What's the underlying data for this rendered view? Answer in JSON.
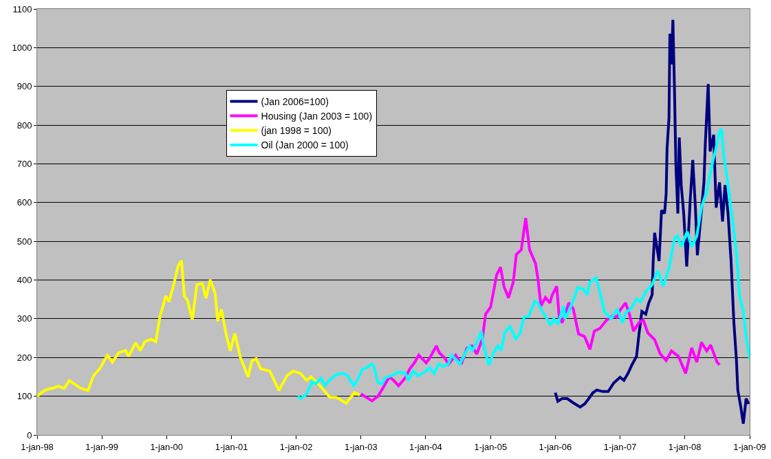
{
  "chart_data": {
    "type": "line",
    "xlim": [
      "1998-01-01",
      "2009-01-01"
    ],
    "xticks": [
      {
        "value": "1998-01-01",
        "label": "1-jan-98"
      },
      {
        "value": "1999-01-01",
        "label": "1-jan-99"
      },
      {
        "value": "2000-01-01",
        "label": "1-jan-00"
      },
      {
        "value": "2001-01-01",
        "label": "1-jan-01"
      },
      {
        "value": "2002-01-01",
        "label": "1-jan-02"
      },
      {
        "value": "2003-01-01",
        "label": "1-jan-03"
      },
      {
        "value": "2004-01-01",
        "label": "1-jan-04"
      },
      {
        "value": "2005-01-01",
        "label": "1-jan-05"
      },
      {
        "value": "2006-01-01",
        "label": "1-jan-06"
      },
      {
        "value": "2007-01-01",
        "label": "1-jan-07"
      },
      {
        "value": "2008-01-01",
        "label": "1-jan-08"
      },
      {
        "value": "2009-01-01",
        "label": "1-jan-09"
      }
    ],
    "ylim": [
      0,
      1100
    ],
    "yticks": [
      0,
      100,
      200,
      300,
      400,
      500,
      600,
      700,
      800,
      900,
      1000,
      1100
    ],
    "grid": "y",
    "legend": "top left",
    "marker": "none",
    "line_style": "solid",
    "series": [
      {
        "name": "(Jan 2006=100)",
        "color": "#000080",
        "x": [
          "2006-01-01",
          "2006-01-15",
          "2006-02-09",
          "2006-03-09",
          "2006-04-12",
          "2006-05-21",
          "2006-06-15",
          "2006-07-09",
          "2006-08-01",
          "2006-08-23",
          "2006-09-26",
          "2006-10-26",
          "2006-11-26",
          "2007-01-01",
          "2007-01-23",
          "2007-02-15",
          "2007-03-09",
          "2007-04-04",
          "2007-04-18",
          "2007-05-04",
          "2007-05-26",
          "2007-06-12",
          "2007-07-01",
          "2007-07-07",
          "2007-07-15",
          "2007-08-09",
          "2007-08-23",
          "2007-09-09",
          "2007-09-18",
          "2007-09-23",
          "2007-10-04",
          "2007-10-09",
          "2007-10-18",
          "2007-10-26",
          "2007-11-04",
          "2007-11-12",
          "2007-11-23",
          "2007-12-01",
          "2007-12-12",
          "2007-12-26",
          "2008-01-12",
          "2008-02-01",
          "2008-02-15",
          "2008-03-01",
          "2008-03-12",
          "2008-04-04",
          "2008-04-18",
          "2008-04-26",
          "2008-05-12",
          "2008-05-23",
          "2008-06-12",
          "2008-06-26",
          "2008-07-15",
          "2008-08-01",
          "2008-08-15",
          "2008-09-01",
          "2008-09-18",
          "2008-10-04",
          "2008-10-18",
          "2008-10-26",
          "2008-11-12",
          "2008-11-26",
          "2008-12-12",
          "2008-12-26"
        ],
        "values": [
          109,
          87,
          94,
          94,
          83,
          72,
          80,
          94,
          109,
          116,
          112,
          112,
          134,
          149,
          141,
          159,
          181,
          203,
          261,
          319,
          312,
          341,
          362,
          449,
          522,
          449,
          580,
          572,
          623,
          739,
          819,
          1036,
          957,
          1072,
          891,
          696,
          572,
          768,
          645,
          572,
          435,
          609,
          710,
          587,
          464,
          580,
          652,
          754,
          906,
          732,
          775,
          587,
          652,
          551,
          645,
          572,
          449,
          290,
          196,
          116,
          72,
          29,
          94,
          80
        ]
      },
      {
        "name": "Housing (Jan 2003 = 100)",
        "color": "#ff00ff",
        "x": [
          "2003-01-01",
          "2003-02-01",
          "2003-03-04",
          "2003-04-07",
          "2003-05-01",
          "2003-06-10",
          "2003-07-04",
          "2003-08-01",
          "2003-09-07",
          "2003-10-04",
          "2003-11-01",
          "2003-11-23",
          "2004-01-04",
          "2004-01-26",
          "2004-03-01",
          "2004-03-18",
          "2004-04-15",
          "2004-05-09",
          "2004-06-18",
          "2004-07-20",
          "2004-08-20",
          "2004-09-18",
          "2004-10-15",
          "2004-11-15",
          "2004-12-04",
          "2005-01-01",
          "2005-02-04",
          "2005-02-26",
          "2005-03-18",
          "2005-04-12",
          "2005-05-09",
          "2005-05-26",
          "2005-06-23",
          "2005-07-18",
          "2005-08-09",
          "2005-09-12",
          "2005-09-26",
          "2005-10-12",
          "2005-11-06",
          "2005-12-01",
          "2005-12-15",
          "2006-01-09",
          "2006-01-23",
          "2006-02-09",
          "2006-03-18",
          "2006-04-12",
          "2006-05-12",
          "2006-06-15",
          "2006-07-15",
          "2006-08-09",
          "2006-09-09",
          "2006-10-18",
          "2006-11-20",
          "2006-12-15",
          "2007-01-01",
          "2007-02-01",
          "2007-02-23",
          "2007-03-18",
          "2007-04-18",
          "2007-05-12",
          "2007-06-06",
          "2007-07-15",
          "2007-08-15",
          "2007-09-18",
          "2007-10-18",
          "2007-11-26",
          "2008-01-06",
          "2008-02-09",
          "2008-03-09",
          "2008-04-04",
          "2008-05-04",
          "2008-05-26",
          "2008-07-01",
          "2008-07-15"
        ],
        "values": [
          106,
          97,
          88,
          100,
          118,
          150,
          141,
          127,
          147,
          171,
          188,
          206,
          186,
          200,
          230,
          212,
          200,
          183,
          206,
          183,
          224,
          230,
          209,
          247,
          312,
          330,
          413,
          433,
          383,
          354,
          395,
          466,
          478,
          560,
          478,
          442,
          399,
          333,
          355,
          341,
          362,
          384,
          304,
          290,
          341,
          326,
          261,
          254,
          221,
          268,
          275,
          297,
          308,
          304,
          322,
          341,
          312,
          268,
          290,
          297,
          264,
          246,
          210,
          192,
          217,
          203,
          159,
          225,
          188,
          239,
          217,
          232,
          188,
          181
        ]
      },
      {
        "name": "(jan 1998 = 100)",
        "color": "#ffff00",
        "x": [
          "1998-01-01",
          "1998-02-01",
          "1998-03-01",
          "1998-04-01",
          "1998-05-01",
          "1998-06-01",
          "1998-07-01",
          "1998-08-01",
          "1998-09-01",
          "1998-10-15",
          "1998-11-15",
          "1998-12-20",
          "1999-02-01",
          "1999-03-01",
          "1999-04-05",
          "1999-05-15",
          "1999-06-01",
          "1999-07-10",
          "1999-08-05",
          "1999-09-01",
          "1999-10-05",
          "1999-11-01",
          "1999-11-25",
          "1999-12-28",
          "2000-01-15",
          "2000-02-10",
          "2000-03-05",
          "2000-03-25",
          "2000-04-10",
          "2000-04-28",
          "2000-05-25",
          "2000-06-20",
          "2000-07-20",
          "2000-08-10",
          "2000-09-03",
          "2000-10-01",
          "2000-10-15",
          "2000-11-05",
          "2000-12-05",
          "2000-12-25",
          "2001-01-20",
          "2001-02-20",
          "2001-04-05",
          "2001-04-25",
          "2001-05-20",
          "2001-06-15",
          "2001-08-05",
          "2001-09-25",
          "2001-11-10",
          "2001-12-15",
          "2002-01-25",
          "2002-03-01",
          "2002-03-25",
          "2002-05-15",
          "2002-07-10",
          "2002-08-15",
          "2002-10-10",
          "2002-11-25",
          "2002-12-25"
        ],
        "values": [
          100,
          112,
          118,
          121,
          126,
          120,
          140,
          131,
          121,
          115,
          153,
          171,
          206,
          188,
          212,
          218,
          203,
          238,
          218,
          241,
          247,
          241,
          306,
          359,
          344,
          388,
          435,
          450,
          359,
          347,
          297,
          388,
          391,
          353,
          400,
          365,
          294,
          324,
          253,
          218,
          262,
          200,
          150,
          191,
          197,
          171,
          165,
          115,
          153,
          165,
          159,
          141,
          150,
          127,
          97,
          97,
          82,
          109,
          103
        ]
      },
      {
        "name": "Oil (Jan 2000 = 100)",
        "color": "#00ffff",
        "x": [
          "2002-01-09",
          "2002-01-26",
          "2002-03-01",
          "2002-04-01",
          "2002-04-21",
          "2002-05-21",
          "2002-06-12",
          "2002-07-12",
          "2002-08-15",
          "2002-09-21",
          "2002-10-18",
          "2002-11-21",
          "2002-12-15",
          "2003-01-07",
          "2003-02-01",
          "2003-03-04",
          "2003-03-15",
          "2003-04-07",
          "2003-05-01",
          "2003-05-15",
          "2003-06-21",
          "2003-08-01",
          "2003-09-09",
          "2003-09-26",
          "2003-10-23",
          "2003-11-18",
          "2003-12-26",
          "2004-01-23",
          "2004-02-18",
          "2004-03-15",
          "2004-04-12",
          "2004-05-07",
          "2004-05-26",
          "2004-06-21",
          "2004-07-12",
          "2004-08-12",
          "2004-09-04",
          "2004-09-21",
          "2004-10-18",
          "2004-11-09",
          "2004-11-26",
          "2004-12-23",
          "2005-01-12",
          "2005-02-09",
          "2005-03-01",
          "2005-03-23",
          "2005-04-21",
          "2005-05-23",
          "2005-06-15",
          "2005-07-09",
          "2005-08-04",
          "2005-09-07",
          "2005-09-23",
          "2005-10-21",
          "2005-11-15",
          "2005-12-07",
          "2005-12-23",
          "2006-01-15",
          "2006-02-18",
          "2006-02-23",
          "2006-03-18",
          "2006-04-18",
          "2006-05-07",
          "2006-06-07",
          "2006-07-01",
          "2006-07-15",
          "2006-08-18",
          "2006-09-09",
          "2006-10-04",
          "2006-11-12",
          "2006-12-15",
          "2007-01-15",
          "2007-02-01",
          "2007-03-04",
          "2007-04-04",
          "2007-04-26",
          "2007-05-26",
          "2007-07-01",
          "2007-08-01",
          "2007-09-01",
          "2007-10-04",
          "2007-11-04",
          "2007-11-21",
          "2007-12-12",
          "2008-01-15",
          "2008-02-09",
          "2008-03-09",
          "2008-04-04",
          "2008-05-04",
          "2008-06-07",
          "2008-06-21",
          "2008-07-15",
          "2008-07-26",
          "2008-08-09",
          "2008-09-01",
          "2008-09-23",
          "2008-10-18",
          "2008-11-04",
          "2008-11-26",
          "2008-12-12",
          "2009-01-01"
        ],
        "values": [
          100,
          94,
          106,
          138,
          132,
          147,
          127,
          144,
          156,
          159,
          153,
          127,
          144,
          168,
          174,
          183,
          177,
          135,
          132,
          147,
          153,
          162,
          159,
          141,
          165,
          153,
          162,
          174,
          159,
          183,
          177,
          183,
          206,
          194,
          183,
          212,
          230,
          218,
          242,
          268,
          224,
          180,
          206,
          230,
          218,
          265,
          280,
          248,
          262,
          304,
          306,
          345,
          342,
          318,
          300,
          283,
          300,
          286,
          333,
          300,
          319,
          355,
          380,
          377,
          362,
          395,
          406,
          370,
          319,
          300,
          326,
          290,
          315,
          326,
          351,
          344,
          370,
          388,
          424,
          384,
          431,
          507,
          514,
          486,
          525,
          486,
          514,
          587,
          630,
          707,
          732,
          783,
          790,
          717,
          645,
          565,
          471,
          362,
          319,
          254,
          196
        ]
      }
    ]
  }
}
